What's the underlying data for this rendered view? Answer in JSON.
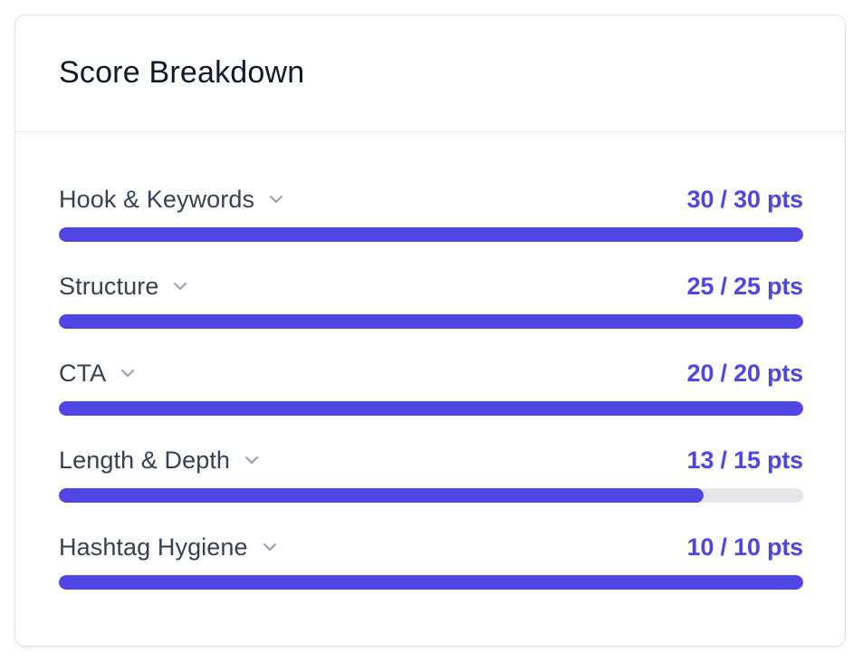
{
  "card": {
    "title": "Score Breakdown"
  },
  "colors": {
    "accent": "#4f46e5",
    "track": "#e5e7eb",
    "label": "#374151",
    "chevron": "#9ca3af"
  },
  "categories": [
    {
      "label": "Hook & Keywords",
      "score_text": "30 / 30 pts",
      "score": 30,
      "max": 30,
      "progress": 1.0,
      "icon": "chevron-down-icon"
    },
    {
      "label": "Structure",
      "score_text": "25 / 25 pts",
      "score": 25,
      "max": 25,
      "progress": 1.0,
      "icon": "chevron-down-icon"
    },
    {
      "label": "CTA",
      "score_text": "20 / 20 pts",
      "score": 20,
      "max": 20,
      "progress": 1.0,
      "icon": "chevron-down-icon"
    },
    {
      "label": "Length & Depth",
      "score_text": "13 / 15 pts",
      "score": 13,
      "max": 15,
      "progress": 0.8667,
      "icon": "chevron-down-icon"
    },
    {
      "label": "Hashtag Hygiene",
      "score_text": "10 / 10 pts",
      "score": 10,
      "max": 10,
      "progress": 1.0,
      "icon": "chevron-down-icon"
    }
  ]
}
